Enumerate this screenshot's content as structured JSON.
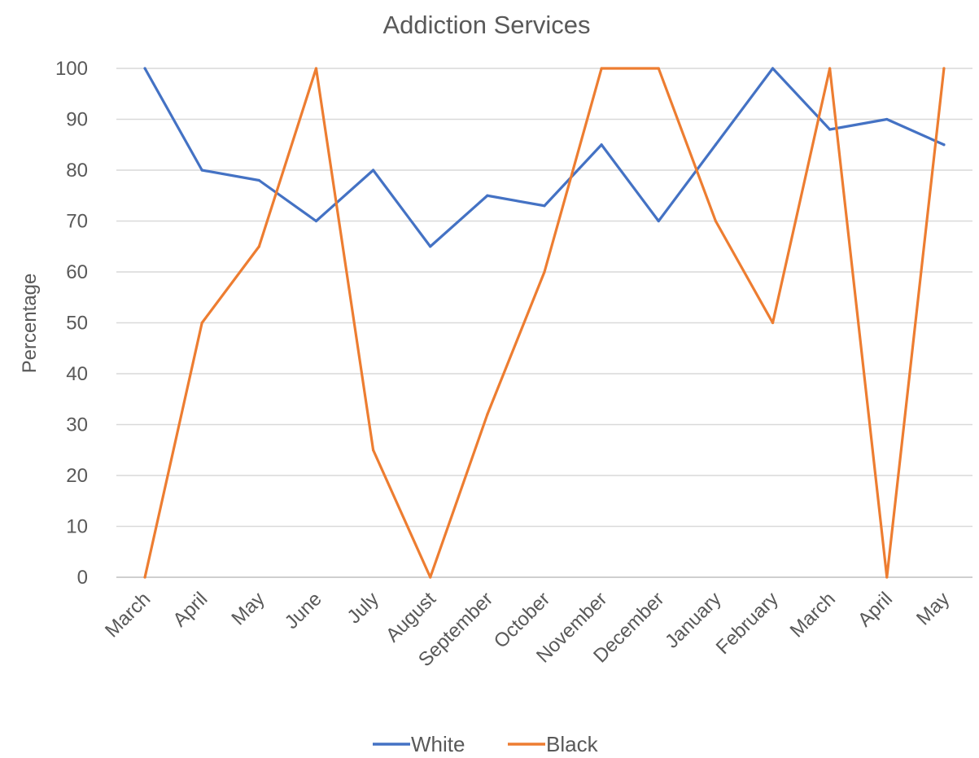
{
  "chart_data": {
    "type": "line",
    "title": "Addiction Services",
    "ylabel": "Percentage",
    "xlabel": "",
    "ylim": [
      0,
      100
    ],
    "yticks": [
      0,
      10,
      20,
      30,
      40,
      50,
      60,
      70,
      80,
      90,
      100
    ],
    "grid": true,
    "legend_position": "bottom",
    "categories": [
      "March",
      "April",
      "May",
      "June",
      "July",
      "August",
      "September",
      "October",
      "November",
      "December",
      "January",
      "February",
      "March",
      "April",
      "May"
    ],
    "series": [
      {
        "name": "White",
        "color": "#4472c4",
        "values": [
          100,
          80,
          78,
          70,
          80,
          65,
          75,
          73,
          85,
          70,
          85,
          100,
          88,
          90,
          85
        ]
      },
      {
        "name": "Black",
        "color": "#ed7d31",
        "values": [
          0,
          50,
          65,
          100,
          25,
          0,
          32,
          60,
          100,
          100,
          70,
          50,
          100,
          0,
          100
        ]
      }
    ]
  }
}
